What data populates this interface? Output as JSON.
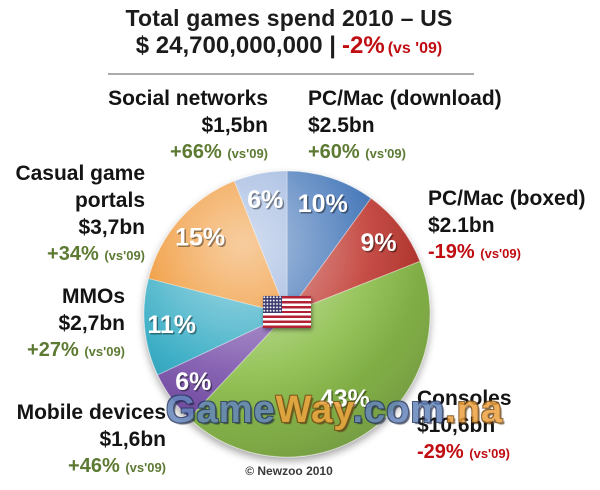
{
  "header": {
    "title": "Total games spend 2010 – US",
    "total_amount": "$ 24,700,000,000 |",
    "total_change": "-2%",
    "total_vs": "(vs '09)"
  },
  "chart_data": {
    "type": "pie",
    "title": "Total games spend 2010 – US",
    "total": "$ 24,700,000,000",
    "total_change_vs_2009": "-2%",
    "vs_label": "(vs'09)",
    "start_at": "12-oclock",
    "direction": "clockwise",
    "center_icon": "us-flag",
    "legend_position": "callouts-around",
    "slices": [
      {
        "label": "PC/Mac (download)",
        "value_label": "$2.5bn",
        "percent": 10,
        "change": "+60%",
        "direction": "up",
        "color": "#3a6fb5"
      },
      {
        "label": "PC/Mac (boxed)",
        "value_label": "$2.1bn",
        "percent": 9,
        "change": "-19%",
        "direction": "down",
        "color": "#c03a32"
      },
      {
        "label": "Consoles",
        "value_label": "$10,6bn",
        "percent": 43,
        "change": "-29%",
        "direction": "down",
        "color": "#8dbf4c"
      },
      {
        "label": "Mobile devices",
        "value_label": "$1,6bn",
        "percent": 6,
        "change": "+46%",
        "direction": "up",
        "color": "#7c54ac"
      },
      {
        "label": "MMOs",
        "value_label": "$2,7bn",
        "percent": 11,
        "change": "+27%",
        "direction": "up",
        "color": "#2fa9c2"
      },
      {
        "label": "Casual game portals",
        "value_label": "$3,7bn",
        "percent": 15,
        "change": "+34%",
        "direction": "up",
        "color": "#ee8a1c"
      },
      {
        "label": "Social networks",
        "value_label": "$1,5bn",
        "percent": 6,
        "change": "+66%",
        "direction": "up",
        "color": "#93aedb"
      }
    ]
  },
  "watermark": {
    "parts": [
      {
        "text": "Game",
        "color": "#6585bc"
      },
      {
        "text": "Way",
        "color": "#eda23e"
      },
      {
        "text": ".com",
        "color": "#6585bc"
      },
      {
        "text": ".na",
        "color": "#eda23e"
      }
    ]
  },
  "footer": {
    "copyright": "© Newzoo 2010"
  }
}
